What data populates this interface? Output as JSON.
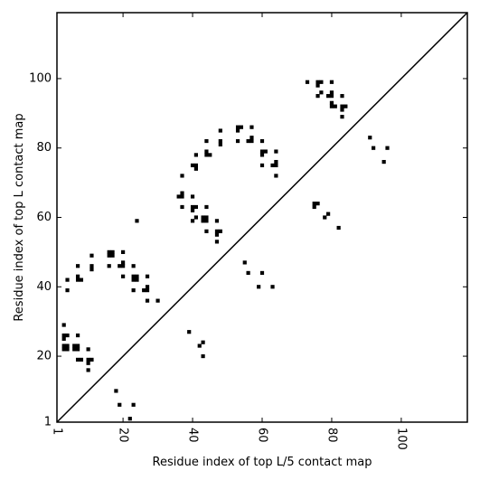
{
  "chart_data": {
    "type": "scatter",
    "title": "",
    "xlabel": "Residue index of top L/5 contact map",
    "ylabel": "Residue index of top L contact map",
    "xlim": [
      1,
      119
    ],
    "ylim": [
      1,
      119
    ],
    "x_ticks": [
      1,
      20,
      40,
      60,
      80,
      100
    ],
    "y_ticks": [
      1,
      20,
      40,
      60,
      80,
      100
    ],
    "x_tick_labels": [
      "1",
      "20",
      "40",
      "60",
      "80",
      "100"
    ],
    "y_tick_labels": [
      "1",
      "20",
      "40",
      "60",
      "80",
      "100"
    ],
    "x_tick_rotation_deg": 90,
    "diagonal": true,
    "grid": false,
    "marker_color": "#000000",
    "series": [
      {
        "points": [
          [
            3,
            22
          ],
          [
            3,
            23
          ],
          [
            3,
            25
          ],
          [
            3,
            26
          ],
          [
            3,
            29
          ],
          [
            4,
            22
          ],
          [
            4,
            23
          ],
          [
            4,
            26
          ],
          [
            4,
            39
          ],
          [
            4,
            42
          ],
          [
            6,
            22
          ],
          [
            6,
            23
          ],
          [
            7,
            19
          ],
          [
            7,
            22
          ],
          [
            7,
            23
          ],
          [
            7,
            26
          ],
          [
            7,
            42
          ],
          [
            7,
            43
          ],
          [
            7,
            46
          ],
          [
            8,
            19
          ],
          [
            8,
            42
          ],
          [
            10,
            16
          ],
          [
            10,
            18
          ],
          [
            10,
            19
          ],
          [
            10,
            22
          ],
          [
            11,
            19
          ],
          [
            11,
            45
          ],
          [
            11,
            46
          ],
          [
            11,
            49
          ],
          [
            16,
            46
          ],
          [
            16,
            49
          ],
          [
            16,
            50
          ],
          [
            17,
            49
          ],
          [
            17,
            50
          ],
          [
            19,
            46
          ],
          [
            20,
            43
          ],
          [
            20,
            46
          ],
          [
            20,
            47
          ],
          [
            20,
            50
          ],
          [
            23,
            39
          ],
          [
            23,
            42
          ],
          [
            23,
            43
          ],
          [
            23,
            46
          ],
          [
            24,
            42
          ],
          [
            24,
            43
          ],
          [
            24,
            59
          ],
          [
            26,
            39
          ],
          [
            27,
            36
          ],
          [
            27,
            39
          ],
          [
            27,
            40
          ],
          [
            27,
            43
          ],
          [
            30,
            36
          ],
          [
            36,
            66
          ],
          [
            37,
            63
          ],
          [
            37,
            66
          ],
          [
            37,
            67
          ],
          [
            37,
            72
          ],
          [
            39,
            27
          ],
          [
            40,
            59
          ],
          [
            40,
            62
          ],
          [
            40,
            63
          ],
          [
            40,
            66
          ],
          [
            40,
            75
          ],
          [
            41,
            60
          ],
          [
            41,
            63
          ],
          [
            41,
            74
          ],
          [
            41,
            75
          ],
          [
            41,
            78
          ],
          [
            43,
            59
          ],
          [
            43,
            60
          ],
          [
            44,
            56
          ],
          [
            44,
            59
          ],
          [
            44,
            60
          ],
          [
            44,
            63
          ],
          [
            44,
            78
          ],
          [
            44,
            79
          ],
          [
            44,
            82
          ],
          [
            45,
            78
          ],
          [
            47,
            53
          ],
          [
            47,
            55
          ],
          [
            47,
            56
          ],
          [
            47,
            59
          ],
          [
            48,
            56
          ],
          [
            48,
            81
          ],
          [
            48,
            82
          ],
          [
            48,
            85
          ],
          [
            53,
            82
          ],
          [
            53,
            85
          ],
          [
            53,
            86
          ],
          [
            54,
            86
          ],
          [
            56,
            82
          ],
          [
            57,
            82
          ],
          [
            57,
            83
          ],
          [
            57,
            86
          ],
          [
            60,
            75
          ],
          [
            60,
            78
          ],
          [
            60,
            79
          ],
          [
            60,
            82
          ],
          [
            61,
            79
          ],
          [
            63,
            75
          ],
          [
            64,
            72
          ],
          [
            64,
            75
          ],
          [
            64,
            76
          ],
          [
            64,
            79
          ],
          [
            73,
            99
          ],
          [
            75,
            63
          ],
          [
            75,
            64
          ],
          [
            76,
            64
          ],
          [
            76,
            95
          ],
          [
            76,
            98
          ],
          [
            76,
            99
          ],
          [
            77,
            96
          ],
          [
            77,
            99
          ],
          [
            79,
            95
          ],
          [
            80,
            92
          ],
          [
            80,
            93
          ],
          [
            80,
            95
          ],
          [
            80,
            96
          ],
          [
            80,
            99
          ],
          [
            81,
            92
          ],
          [
            83,
            89
          ],
          [
            83,
            91
          ],
          [
            83,
            92
          ],
          [
            83,
            95
          ],
          [
            84,
            92
          ],
          [
            91,
            83
          ],
          [
            92,
            80
          ],
          [
            95,
            76
          ],
          [
            96,
            80
          ],
          [
            42,
            23
          ],
          [
            43,
            24
          ],
          [
            43,
            20
          ],
          [
            55,
            47
          ],
          [
            56,
            44
          ],
          [
            59,
            40
          ],
          [
            60,
            44
          ],
          [
            63,
            40
          ],
          [
            78,
            60
          ],
          [
            79,
            61
          ],
          [
            82,
            57
          ],
          [
            18,
            10
          ],
          [
            19,
            6
          ],
          [
            22,
            2
          ],
          [
            23,
            6
          ]
        ]
      }
    ]
  }
}
